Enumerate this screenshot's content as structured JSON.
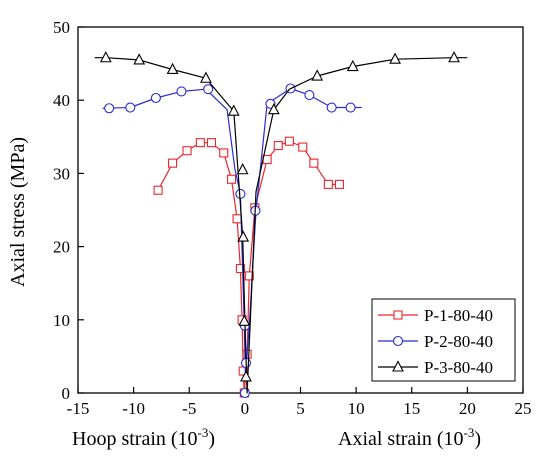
{
  "chart_data": {
    "type": "line",
    "xlabel_left": "Hoop strain (10",
    "xlabel_right": "Axial strain (10",
    "xlabel_exp": "-3",
    "xlabel_close": ")",
    "ylabel": "Axial stress (MPa)",
    "xlim": [
      -15,
      25
    ],
    "ylim": [
      0,
      50
    ],
    "xticks": [
      -15,
      -10,
      -5,
      0,
      5,
      10,
      15,
      20,
      25
    ],
    "yticks": [
      0,
      10,
      20,
      30,
      40,
      50
    ],
    "legend_position": "bottom-right",
    "grid": false,
    "series": [
      {
        "name": "P-1-80-40",
        "color": "#e8282c",
        "marker": "square",
        "x": [
          -7.8,
          -6.5,
          -5.2,
          -4.0,
          -3.0,
          -1.9,
          -1.2,
          -0.7,
          -0.4,
          -0.25,
          -0.15,
          -0.05,
          0.2,
          0.4,
          0.9,
          2.0,
          3.0,
          4.0,
          5.2,
          6.2,
          7.5,
          8.5
        ],
        "y": [
          27.7,
          31.4,
          33.1,
          34.2,
          34.2,
          32.8,
          29.2,
          23.8,
          17.0,
          10.0,
          3.0,
          0.0,
          5.3,
          16.0,
          25.3,
          31.9,
          33.8,
          34.4,
          33.6,
          31.4,
          28.5,
          28.5
        ]
      },
      {
        "name": "P-2-80-40",
        "color": "#2b2bd6",
        "marker": "circle",
        "x": [
          -12.8,
          -10.3,
          -8.0,
          -5.7,
          -3.5,
          -1.6,
          -0.9,
          -0.4,
          -0.05,
          0.05,
          0.15,
          0.4,
          1.0,
          2.0,
          4.1,
          5.8,
          7.8,
          9.5,
          10.5
        ],
        "y": [
          38.9,
          39.0,
          40.3,
          41.2,
          41.5,
          38.7,
          30.6,
          27.2,
          9.2,
          2.0,
          4.1,
          9.2,
          24.9,
          39.5,
          41.6,
          40.7,
          39.0,
          39.0,
          39.0
        ],
        "x_markers": [
          -12.2,
          -10.3,
          -8.0,
          -5.7,
          -3.3,
          0.0,
          -0.4,
          0.0,
          0.1,
          0.95,
          2.3,
          4.1,
          5.8,
          7.8,
          9.5
        ],
        "y_markers": [
          38.9,
          39.0,
          40.3,
          41.2,
          41.5,
          0.0,
          27.2,
          9.2,
          4.1,
          24.9,
          39.5,
          41.6,
          40.7,
          39.0,
          39.0
        ]
      },
      {
        "name": "P-3-80-40",
        "color": "#000000",
        "marker": "triangle",
        "x": [
          -13.5,
          -12.5,
          -9.5,
          -6.5,
          -3.5,
          -1.0,
          -0.2,
          0.0,
          0.2,
          1.0,
          2.6,
          4.0,
          6.5,
          9.7,
          13.5,
          18.8,
          20.0
        ],
        "y": [
          45.8,
          45.8,
          45.5,
          44.2,
          43.0,
          38.5,
          21.3,
          9.8,
          0.0,
          27.5,
          38.7,
          41.5,
          43.3,
          44.6,
          45.6,
          45.8,
          45.8
        ],
        "x_markers": [
          -12.5,
          -9.5,
          -6.5,
          -3.5,
          -1.0,
          -0.2,
          -0.15,
          -0.05,
          0.1,
          2.6,
          6.5,
          9.7,
          13.5,
          18.8
        ],
        "y_markers": [
          45.8,
          45.5,
          44.2,
          43.0,
          38.5,
          30.5,
          21.3,
          9.8,
          2.2,
          38.7,
          43.3,
          44.6,
          45.6,
          45.8
        ]
      }
    ]
  }
}
